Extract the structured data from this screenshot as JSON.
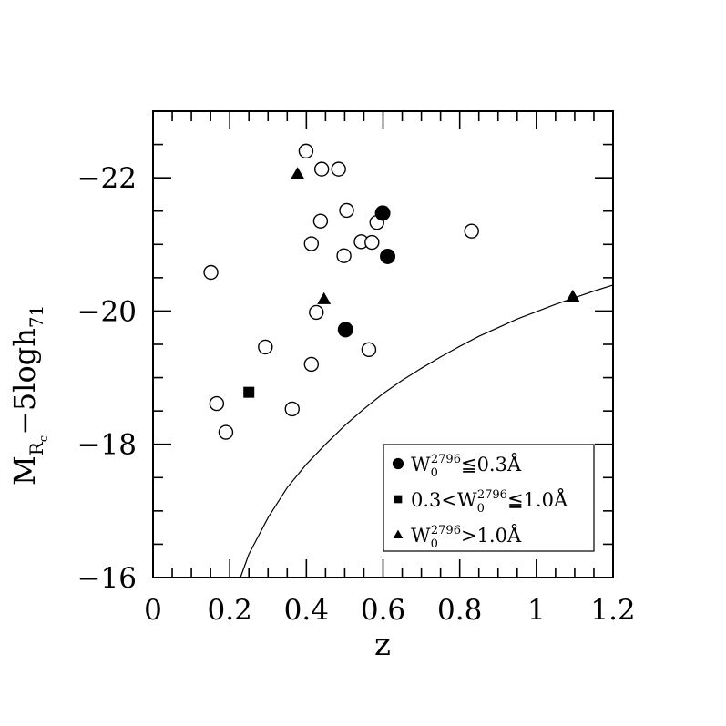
{
  "chart_data": {
    "type": "scatter",
    "xlabel": "z",
    "ylabel": {
      "main": "M",
      "sub": "R",
      "subsub": "c",
      "rest": "−5logh",
      "rest_sub": "71"
    },
    "xlim": [
      0,
      1.2
    ],
    "ylim": [
      -16,
      -23
    ],
    "y_inverted": true,
    "x_major_ticks": [
      0,
      0.2,
      0.4,
      0.6,
      0.8,
      1,
      1.2
    ],
    "x_tick_labels": [
      "0",
      "0.2",
      "0.4",
      "0.6",
      "0.8",
      "1",
      "1.2"
    ],
    "x_minor_step": 0.05,
    "y_major_ticks": [
      -16,
      -18,
      -20,
      -22
    ],
    "y_tick_labels": [
      "−16",
      "−18",
      "−20",
      "−22"
    ],
    "y_minor_step": 0.5,
    "grid": false,
    "legend_position": "bottom-right",
    "legend": [
      {
        "marker": "circle-filled",
        "parts": [
          [
            "W",
            "n"
          ],
          [
            "0",
            "sub"
          ],
          [
            "2796",
            "sup"
          ],
          [
            "≦0.3Å",
            "n"
          ]
        ]
      },
      {
        "marker": "square-filled",
        "parts": [
          [
            "0.3<W",
            "n"
          ],
          [
            "0",
            "sub"
          ],
          [
            "2796",
            "sup"
          ],
          [
            "≦1.0Å",
            "n"
          ]
        ]
      },
      {
        "marker": "triangle-filled",
        "parts": [
          [
            "W",
            "n"
          ],
          [
            "0",
            "sub"
          ],
          [
            "2796",
            "sup"
          ],
          [
            ">1.0Å",
            "n"
          ]
        ]
      }
    ],
    "series": [
      {
        "marker": "circle-open",
        "points": [
          [
            0.399,
            -22.4
          ],
          [
            0.44,
            -22.13
          ],
          [
            0.484,
            -22.13
          ],
          [
            0.505,
            -21.51
          ],
          [
            0.437,
            -21.35
          ],
          [
            0.584,
            -21.33
          ],
          [
            0.413,
            -21.01
          ],
          [
            0.543,
            -21.04
          ],
          [
            0.571,
            -21.03
          ],
          [
            0.498,
            -20.83
          ],
          [
            0.831,
            -21.2
          ],
          [
            0.151,
            -20.58
          ],
          [
            0.426,
            -19.98
          ],
          [
            0.293,
            -19.46
          ],
          [
            0.563,
            -19.42
          ],
          [
            0.413,
            -19.2
          ],
          [
            0.166,
            -18.61
          ],
          [
            0.363,
            -18.53
          ],
          [
            0.19,
            -18.18
          ]
        ]
      },
      {
        "marker": "circle-filled",
        "points": [
          [
            0.599,
            -21.47
          ],
          [
            0.612,
            -20.82
          ],
          [
            0.502,
            -19.72
          ]
        ]
      },
      {
        "marker": "square-filled",
        "points": [
          [
            0.25,
            -18.78
          ]
        ]
      },
      {
        "marker": "triangle-filled",
        "points": [
          [
            0.377,
            -22.06
          ],
          [
            0.446,
            -20.18
          ],
          [
            1.095,
            -20.22
          ]
        ]
      }
    ],
    "curve": {
      "style": "solid-line",
      "points": [
        [
          0.228,
          -16.0
        ],
        [
          0.25,
          -16.35
        ],
        [
          0.3,
          -16.9
        ],
        [
          0.35,
          -17.35
        ],
        [
          0.4,
          -17.7
        ],
        [
          0.45,
          -18.0
        ],
        [
          0.5,
          -18.28
        ],
        [
          0.55,
          -18.53
        ],
        [
          0.6,
          -18.76
        ],
        [
          0.65,
          -18.96
        ],
        [
          0.7,
          -19.14
        ],
        [
          0.75,
          -19.31
        ],
        [
          0.8,
          -19.47
        ],
        [
          0.85,
          -19.62
        ],
        [
          0.9,
          -19.75
        ],
        [
          0.95,
          -19.88
        ],
        [
          1.0,
          -19.99
        ],
        [
          1.05,
          -20.1
        ],
        [
          1.1,
          -20.2
        ],
        [
          1.15,
          -20.3
        ],
        [
          1.2,
          -20.39
        ]
      ]
    }
  }
}
